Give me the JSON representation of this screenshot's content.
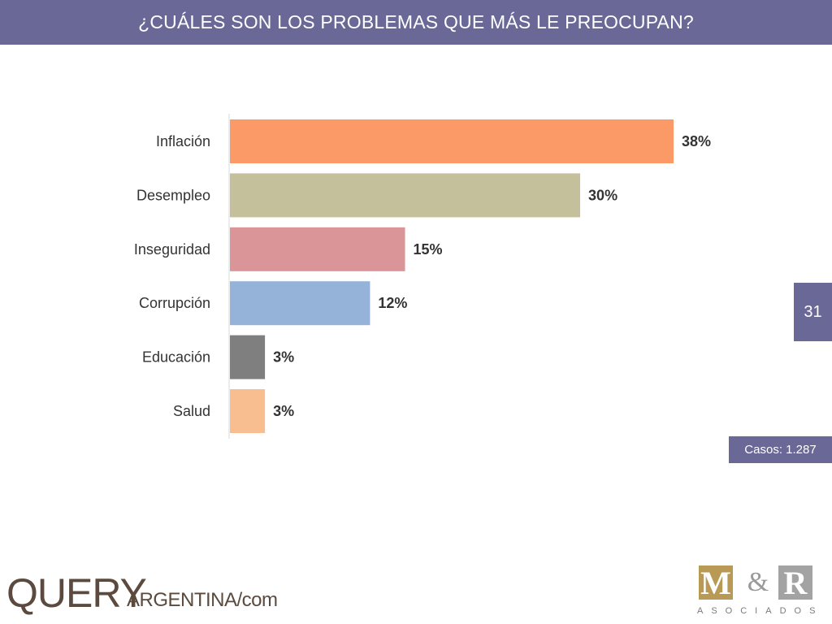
{
  "header": {
    "title": "¿CUÁLES SON LOS PROBLEMAS QUE MÁS LE PREOCUPAN?"
  },
  "page_number": "31",
  "cases_label": "Casos: 1.287",
  "logos": {
    "query": {
      "main": "QUERY",
      "sub": "ARGENTINA/com"
    },
    "mr": {
      "m": "M",
      "amp": "&",
      "r": "R",
      "sub": "ASOCIADOS"
    }
  },
  "chart_data": {
    "type": "bar",
    "orientation": "horizontal",
    "categories": [
      "Inflación",
      "Desempleo",
      "Inseguridad",
      "Corrupción",
      "Educación",
      "Salud"
    ],
    "values": [
      38,
      30,
      15,
      12,
      3,
      3
    ],
    "value_labels": [
      "38%",
      "30%",
      "15%",
      "12%",
      "3%",
      "3%"
    ],
    "colors": [
      "#fb9a66",
      "#c4c09c",
      "#d99597",
      "#95b3d8",
      "#7f7f7f",
      "#f9be8f"
    ],
    "unit": "%",
    "xlim": [
      0,
      38
    ],
    "grid": false,
    "legend": "none"
  }
}
